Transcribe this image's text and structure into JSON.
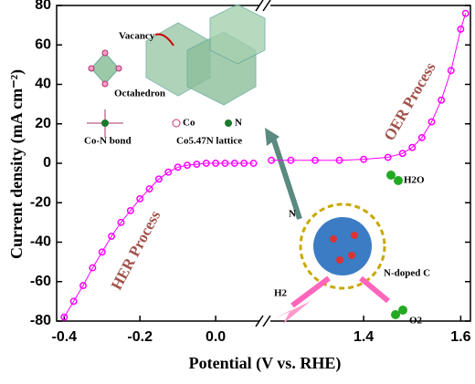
{
  "chart_data": [
    {
      "type": "line",
      "ylabel": "Current density (mA cm⁻²)",
      "xlabel": "Potential (V vs. RHE)",
      "ylim": [
        -80,
        80
      ],
      "yticks": [
        -80,
        -60,
        -40,
        -20,
        0,
        20,
        40,
        60,
        80
      ],
      "xlim": [
        -0.42,
        0.118
      ],
      "xticks": [
        -0.4,
        -0.2,
        {
          "value": 0,
          "label": "0.0"
        }
      ],
      "annotations": [
        "HER Process"
      ],
      "series": [
        {
          "color": "#ff00ff",
          "x": [
            -0.4,
            -0.375,
            -0.35,
            -0.325,
            -0.3,
            -0.275,
            -0.25,
            -0.225,
            -0.2,
            -0.175,
            -0.15,
            -0.125,
            -0.1,
            -0.075,
            -0.05,
            -0.025,
            0,
            0.025,
            0.05,
            0.075,
            0.1
          ],
          "values": [
            -78,
            -70,
            -62,
            -53,
            -45,
            -37,
            -30,
            -24,
            -18,
            -13,
            -8,
            -4.5,
            -2,
            -1,
            -0.5,
            0,
            0,
            0,
            0,
            0,
            0
          ]
        }
      ]
    },
    {
      "type": "line",
      "ylim": [
        -80,
        80
      ],
      "xlim": [
        1.206,
        1.62
      ],
      "xticks": [
        1.4,
        1.6
      ],
      "annotations": [
        "OER Process"
      ],
      "series": [
        {
          "color": "#ff00ff",
          "x": [
            1.21,
            1.25,
            1.3,
            1.35,
            1.4,
            1.45,
            1.48,
            1.5,
            1.52,
            1.54,
            1.56,
            1.58,
            1.6,
            1.61
          ],
          "values": [
            1.5,
            1.5,
            1.5,
            1.5,
            2,
            3,
            5,
            8,
            13,
            21,
            32,
            47,
            68,
            76
          ]
        }
      ]
    }
  ],
  "illustration": {
    "labels": [
      "Vacancy",
      "Octahedron",
      "Co-N bond",
      "Co",
      "N",
      "Co5.47N lattice",
      "N",
      "H2O",
      "N-doped C",
      "H2",
      "O2"
    ]
  }
}
